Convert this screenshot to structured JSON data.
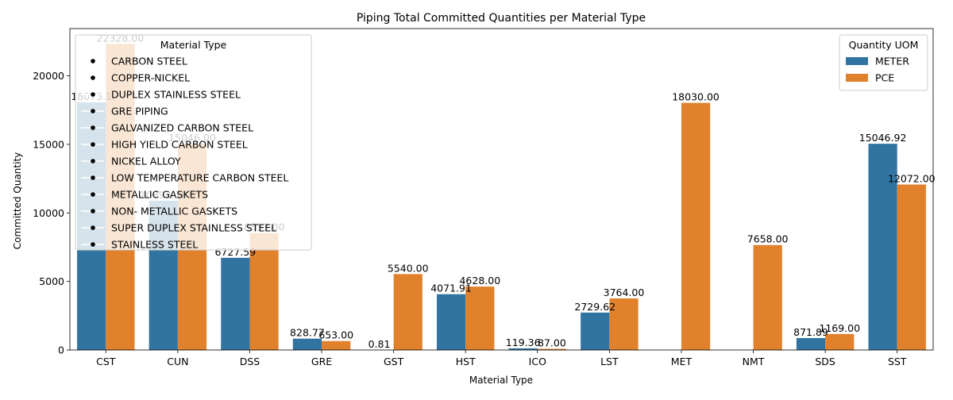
{
  "chart_data": {
    "type": "bar",
    "title": "Piping Total Committed Quantities per Material Type",
    "xlabel": "Material Type",
    "ylabel": "Committed Quantity",
    "ylim": [
      0,
      23450
    ],
    "yticks": [
      0,
      5000,
      10000,
      15000,
      20000
    ],
    "grid": false,
    "categories": [
      "CST",
      "CUN",
      "DSS",
      "GRE",
      "GST",
      "HST",
      "ICO",
      "LST",
      "MET",
      "NMT",
      "SDS",
      "SST"
    ],
    "series": [
      {
        "name": "METER",
        "color": "#3274a1",
        "values": [
          18073.1,
          10893.16,
          6727.59,
          828.77,
          0.81,
          4071.91,
          119.36,
          2729.62,
          null,
          null,
          871.89,
          15046.92
        ],
        "labels": [
          "18073.1",
          "10893.16",
          "6727.59",
          "828.77",
          "0.81",
          "4071.91",
          "119.36",
          "2729.62",
          "",
          "",
          "871.89",
          "15046.92"
        ]
      },
      {
        "name": "PCE",
        "color": "#e1812c",
        "values": [
          22328.0,
          15046.0,
          8533.0,
          653.0,
          5540.0,
          4628.0,
          87.0,
          3764.0,
          18030.0,
          7658.0,
          1169.0,
          12072.0
        ],
        "labels": [
          "22328.00",
          "15046.00",
          "8533.00",
          "653.00",
          "5540.00",
          "4628.00",
          "87.00",
          "3764.00",
          "18030.00",
          "7658.00",
          "1169.00",
          "12072.00"
        ]
      }
    ],
    "legend_hue": {
      "title": "Quantity UOM",
      "position": "top-right",
      "entries": [
        "METER",
        "PCE"
      ]
    },
    "legend_material": {
      "title": "Material Type",
      "position": "top-left",
      "entries": [
        "CARBON STEEL",
        "COPPER-NICKEL",
        "DUPLEX STAINLESS STEEL",
        "GRE PIPING",
        "GALVANIZED CARBON STEEL",
        "HIGH YIELD CARBON STEEL",
        "NICKEL ALLOY",
        "LOW TEMPERATURE CARBON STEEL",
        "METALLIC GASKETS",
        "NON- METALLIC GASKETS",
        "SUPER DUPLEX STAINLESS STEEL",
        "STAINLESS STEEL"
      ]
    }
  }
}
